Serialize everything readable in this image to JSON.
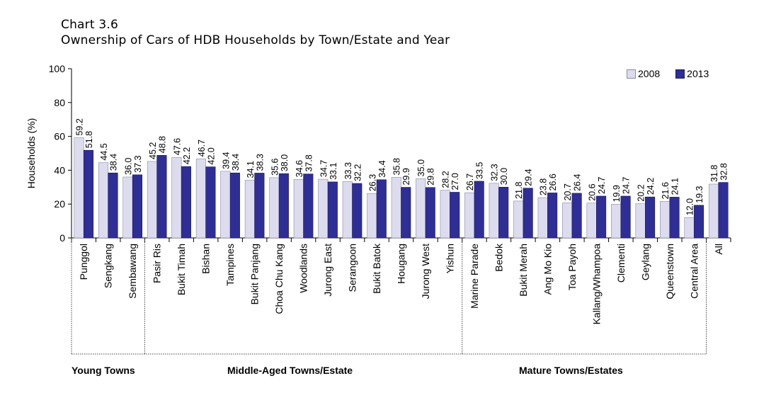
{
  "header": {
    "chart_number": "Chart 3.6",
    "title": "Ownership of Cars of HDB Households by Town/Estate and Year"
  },
  "colors": {
    "s2008_fill": "#dcdcee",
    "s2008_stroke": "#8a8aa8",
    "s2013_fill": "#2e2e96",
    "s2013_stroke": "#1a1a60"
  },
  "chart_data": {
    "type": "bar",
    "title": "Ownership of Cars of HDB Households by Town/Estate and Year",
    "ylabel": "Households (%)",
    "xlabel": "",
    "ylim": [
      0,
      100
    ],
    "yticks": [
      0,
      20,
      40,
      60,
      80,
      100
    ],
    "grid": false,
    "legend_position": "top-right",
    "categories": [
      "Punggol",
      "Sengkang",
      "Sembawang",
      "Pasir Ris",
      "Bukit Timah",
      "Bishan",
      "Tampines",
      "Bukit Panjang",
      "Choa Chu Kang",
      "Woodlands",
      "Jurong East",
      "Serangoon",
      "Bukit Batok",
      "Hougang",
      "Jurong West",
      "Yishun",
      "Marine Parade",
      "Bedok",
      "Bukit Merah",
      "Ang Mo Kio",
      "Toa Payoh",
      "Kallang/Whampoa",
      "Clementi",
      "Geylang",
      "Queenstown",
      "Central Area",
      "All"
    ],
    "series": [
      {
        "name": "2008",
        "values": [
          59.2,
          44.5,
          36.0,
          45.2,
          47.6,
          46.7,
          39.4,
          34.1,
          35.6,
          34.6,
          34.7,
          33.3,
          26.3,
          35.8,
          35.0,
          28.2,
          26.7,
          32.3,
          21.8,
          23.8,
          20.7,
          20.6,
          19.9,
          20.2,
          21.6,
          12.0,
          31.8
        ]
      },
      {
        "name": "2013",
        "values": [
          51.8,
          38.4,
          37.3,
          48.8,
          42.2,
          42.0,
          38.4,
          38.3,
          38.0,
          37.8,
          33.1,
          32.2,
          34.4,
          29.9,
          29.8,
          27.0,
          33.5,
          30.0,
          29.4,
          26.6,
          26.4,
          24.7,
          24.7,
          24.2,
          24.1,
          19.3,
          32.8
        ]
      }
    ],
    "groups": [
      {
        "label": "Young Towns",
        "start": 0,
        "end": 2
      },
      {
        "label": "Middle-Aged Towns/Estate",
        "start": 3,
        "end": 15
      },
      {
        "label": "Mature Towns/Estates",
        "start": 16,
        "end": 25
      }
    ]
  }
}
